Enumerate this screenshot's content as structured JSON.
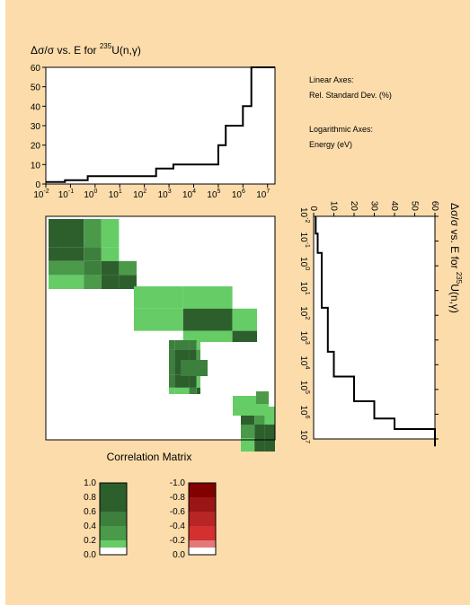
{
  "colors": {
    "background": "#fcdcaa",
    "green_levels": [
      "#ffffff",
      "#66cc66",
      "#4a9a4a",
      "#3d7f3d",
      "#2d5f2d"
    ],
    "red_levels": [
      "#ffffff",
      "#e27a7a",
      "#d43030",
      "#b82525",
      "#9a1515",
      "#820000"
    ]
  },
  "chart_data": [
    {
      "type": "line",
      "title_prefix": "Δσ/σ vs. E for ",
      "title_isotope": "235",
      "title_reaction": "U(n,γ)",
      "x_scale": "log",
      "xlim": [
        0.01,
        20000000
      ],
      "ylim": [
        0,
        60
      ],
      "y_ticks": [
        "0",
        "10",
        "20",
        "30",
        "40",
        "50",
        "60"
      ],
      "x_ticks": [
        {
          "base": "10",
          "exp": "-2"
        },
        {
          "base": "10",
          "exp": "-1"
        },
        {
          "base": "10",
          "exp": "0"
        },
        {
          "base": "10",
          "exp": "1"
        },
        {
          "base": "10",
          "exp": "2"
        },
        {
          "base": "10",
          "exp": "3"
        },
        {
          "base": "10",
          "exp": "4"
        },
        {
          "base": "10",
          "exp": "5"
        },
        {
          "base": "10",
          "exp": "6"
        },
        {
          "base": "10",
          "exp": "7"
        }
      ],
      "step_edges": [
        0.01,
        0.06,
        0.5,
        300,
        1500,
        100000,
        200000,
        1000000,
        2200000,
        20000000
      ],
      "step_values": [
        1,
        2,
        4,
        8,
        10,
        20,
        30,
        40,
        60
      ]
    },
    {
      "type": "heatmap",
      "title": "Correlation Matrix",
      "groups": [
        {
          "name": "group-a",
          "edges": [
            0,
            40,
            60,
            80,
            100
          ],
          "cells": [
            [
              4,
              2,
              1,
              0
            ],
            [
              4,
              3,
              1,
              0
            ],
            [
              2,
              3,
              4,
              2
            ],
            [
              1,
              2,
              4,
              4
            ]
          ]
        },
        {
          "name": "group-b",
          "edges": [
            0,
            40,
            80,
            100
          ],
          "cells": [
            [
              1,
              1,
              0
            ],
            [
              1,
              4,
              1
            ],
            [
              0,
              1,
              4
            ]
          ]
        },
        {
          "name": "group-c",
          "edges": [
            0,
            15,
            55,
            75,
            85
          ],
          "cells": [
            [
              3,
              3,
              3,
              1
            ],
            [
              3,
              4,
              4,
              2
            ],
            [
              3,
              4,
              4,
              1
            ],
            [
              1,
              1,
              3,
              4
            ]
          ]
        },
        {
          "name": "group-d",
          "edges": [
            0,
            40,
            70,
            100
          ],
          "cells": [
            [
              4,
              2,
              1
            ],
            [
              2,
              4,
              4
            ],
            [
              1,
              4,
              4
            ]
          ]
        }
      ]
    },
    {
      "type": "line",
      "orientation": "vertical",
      "title_prefix": "Δσ/σ vs. E for ",
      "title_isotope": "235",
      "title_reaction": "U(n,γ)",
      "y_scale": "log",
      "xlim": [
        0,
        60
      ],
      "x_ticks": [
        "0",
        "10",
        "20",
        "30",
        "40",
        "50",
        "60"
      ],
      "y_ticks": [
        {
          "base": "10",
          "exp": "-2"
        },
        {
          "base": "10",
          "exp": "-1"
        },
        {
          "base": "10",
          "exp": "0"
        },
        {
          "base": "10",
          "exp": "1"
        },
        {
          "base": "10",
          "exp": "2"
        },
        {
          "base": "10",
          "exp": "3"
        },
        {
          "base": "10",
          "exp": "4"
        },
        {
          "base": "10",
          "exp": "5"
        },
        {
          "base": "10",
          "exp": "6"
        },
        {
          "base": "10",
          "exp": "7"
        }
      ],
      "step_edges": [
        0.01,
        0.05,
        0.3,
        50,
        3000,
        30000,
        300000,
        1500000,
        4000000,
        20000000
      ],
      "step_values": [
        1,
        2,
        4,
        7,
        10,
        20,
        30,
        40,
        60
      ]
    }
  ],
  "axes_note": {
    "linear_heading": "Linear Axes:",
    "linear_value": "Rel. Standard Dev. (%)",
    "log_heading": "Logarithmic Axes:",
    "log_value": "Energy (eV)"
  },
  "legend": {
    "positive": {
      "labels": [
        "1.0",
        "0.8",
        "0.6",
        "0.4",
        "0.2",
        "0.0"
      ],
      "bands": [
        {
          "from": 0.6,
          "to": 1.0,
          "level": 4
        },
        {
          "from": 0.4,
          "to": 0.6,
          "level": 3
        },
        {
          "from": 0.2,
          "to": 0.4,
          "level": 2
        },
        {
          "from": 0.1,
          "to": 0.2,
          "level": 1
        },
        {
          "from": 0.0,
          "to": 0.1,
          "level": 0
        }
      ]
    },
    "negative": {
      "labels": [
        "-1.0",
        "-0.8",
        "-0.6",
        "-0.4",
        "-0.2",
        "0.0"
      ],
      "bands": [
        {
          "from": 0.8,
          "to": 1.0,
          "level": 5
        },
        {
          "from": 0.6,
          "to": 0.8,
          "level": 4
        },
        {
          "from": 0.4,
          "to": 0.6,
          "level": 3
        },
        {
          "from": 0.2,
          "to": 0.4,
          "level": 2
        },
        {
          "from": 0.1,
          "to": 0.2,
          "level": 1
        },
        {
          "from": 0.0,
          "to": 0.1,
          "level": 0
        }
      ]
    }
  }
}
